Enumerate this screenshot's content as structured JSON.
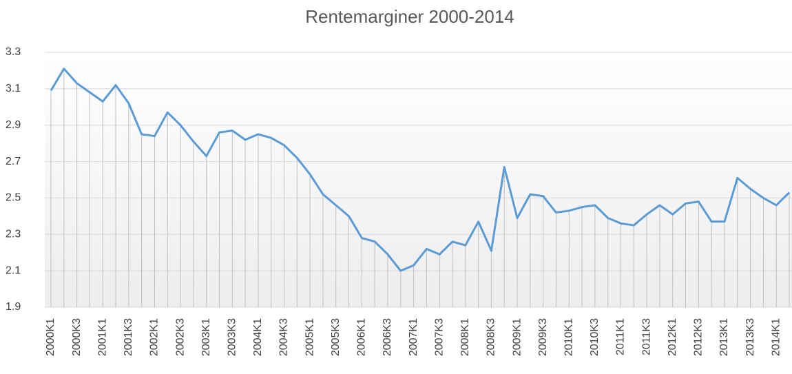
{
  "chart_data": {
    "type": "line",
    "title": "Rentemarginer 2000-2014",
    "categories": [
      "2000K1",
      null,
      "2000K3",
      null,
      "2001K1",
      null,
      "2001K3",
      null,
      "2002K1",
      null,
      "2002K3",
      null,
      "2003K1",
      null,
      "2003K3",
      null,
      "2004K1",
      null,
      "2004K3",
      null,
      "2005K1",
      null,
      "2005K3",
      null,
      "2006K1",
      null,
      "2006K3",
      null,
      "2007K1",
      null,
      "2007K3",
      null,
      "2008K1",
      null,
      "2008K3",
      null,
      "2009K1",
      null,
      "2009K3",
      null,
      "2010K1",
      null,
      "2010K3",
      null,
      "2011K1",
      null,
      "2011K3",
      null,
      "2012K1",
      null,
      "2012K3",
      null,
      "2013K1",
      null,
      "2013K3",
      null,
      "2014K1",
      null
    ],
    "series": [
      {
        "color": "#5b9bd5",
        "values": [
          3.09,
          3.21,
          3.13,
          3.08,
          3.03,
          3.12,
          3.02,
          2.85,
          2.84,
          2.97,
          2.9,
          2.81,
          2.73,
          2.86,
          2.87,
          2.82,
          2.85,
          2.83,
          2.79,
          2.72,
          2.63,
          2.52,
          2.46,
          2.4,
          2.28,
          2.26,
          2.19,
          2.1,
          2.13,
          2.22,
          2.19,
          2.26,
          2.24,
          2.37,
          2.21,
          2.67,
          2.39,
          2.52,
          2.51,
          2.42,
          2.43,
          2.45,
          2.46,
          2.39,
          2.36,
          2.35,
          2.41,
          2.46,
          2.41,
          2.47,
          2.48,
          2.37,
          2.37,
          2.61,
          2.55,
          2.5,
          2.46,
          2.53
        ]
      }
    ],
    "ylim": [
      1.9,
      3.3
    ],
    "yticks": [
      1.9,
      2.1,
      2.3,
      2.5,
      2.7,
      2.9,
      3.1,
      3.3
    ],
    "grid": true,
    "drop_lines": true
  }
}
